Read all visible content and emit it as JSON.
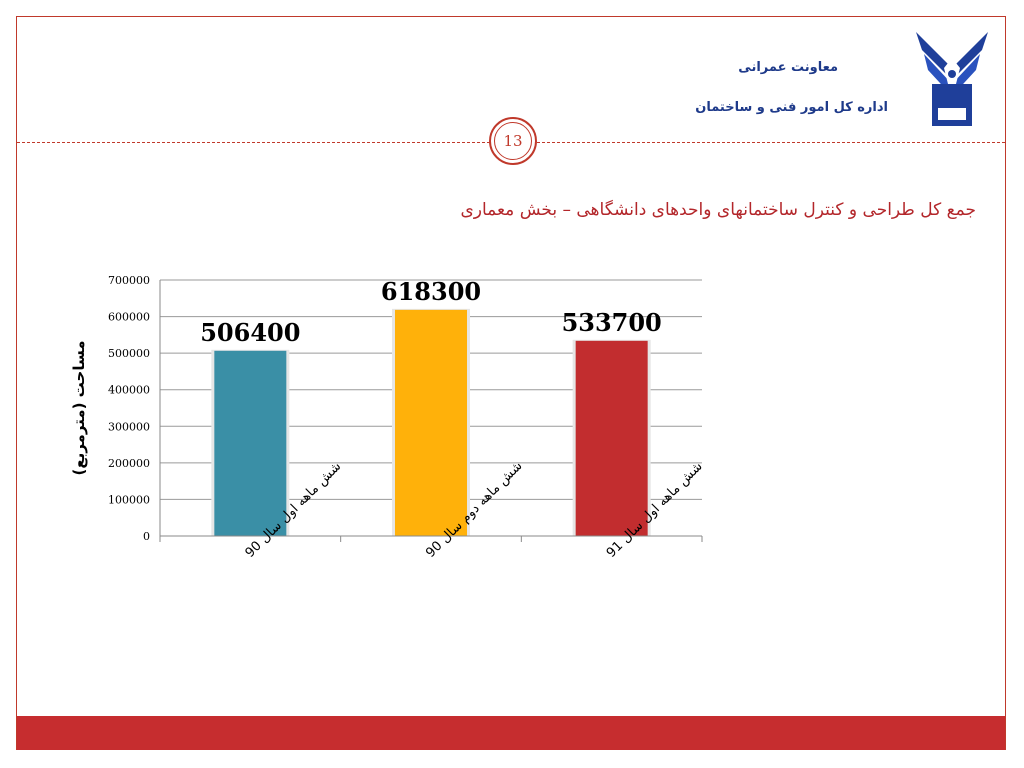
{
  "slide": {
    "page_number": "13",
    "department_line1": "معاونت عمرانی",
    "department_line2": "اداره کل امور فنی و ساختمان",
    "colors": {
      "accent": "#c0392b",
      "footer": "#c62d2f",
      "header_text": "#1e3a8a",
      "title_text": "#b3262a"
    }
  },
  "chart_data": {
    "type": "bar",
    "title": "جمع کل طراحی و کنترل ساختمانهای واحدهای دانشگاهی – بخش معماری",
    "ylabel": "مساحت (مترمربع)",
    "xlabel": "",
    "categories": [
      "شش ماهه اول سال 90",
      "شش ماهه دوم سال 90",
      "شش ماهه اول سال 91"
    ],
    "values": [
      506400,
      618300,
      533700
    ],
    "data_labels": [
      "506400",
      "618300",
      "533700"
    ],
    "bar_colors": [
      "#3a8fa6",
      "#ffb10a",
      "#c22d2f"
    ],
    "ylim": [
      0,
      700000
    ],
    "yticks": [
      "0",
      "100000",
      "200000",
      "300000",
      "400000",
      "500000",
      "600000",
      "700000"
    ],
    "grid": true,
    "legend": "none"
  }
}
